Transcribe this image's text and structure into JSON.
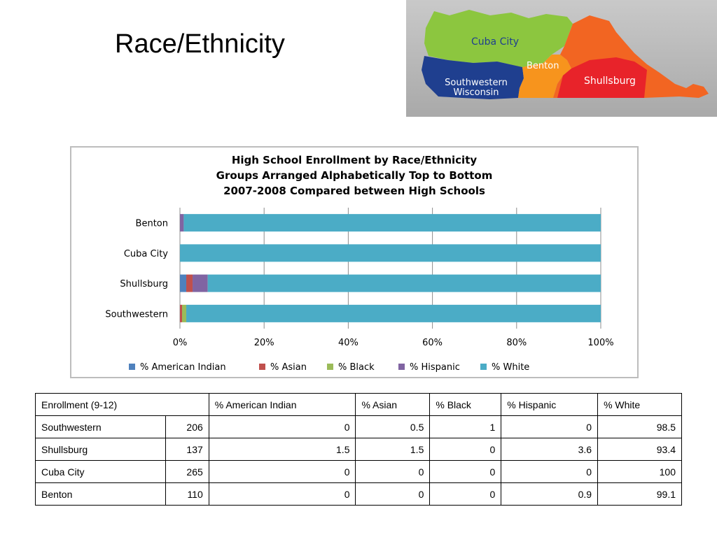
{
  "slide": {
    "title": "Race/Ethnicity"
  },
  "map": {
    "regions": [
      {
        "name": "Cuba City",
        "color": "#8cc63f"
      },
      {
        "name": "Benton",
        "color": "#f7941d"
      },
      {
        "name": "Southwestern Wisconsin",
        "color": "#1f3f8f"
      },
      {
        "name": "Shullsburg",
        "color": "#e8232a"
      }
    ]
  },
  "chart_data": {
    "type": "bar",
    "orientation": "horizontal-stacked-100",
    "title_lines": [
      "High School Enrollment by Race/Ethnicity",
      "Groups Arranged Alphabetically Top to Bottom",
      "2007-2008 Compared between High Schools"
    ],
    "categories": [
      "Benton",
      "Cuba City",
      "Shullsburg",
      "Southwestern"
    ],
    "series": [
      {
        "name": "% American Indian",
        "color": "#4f81bd",
        "values": [
          0,
          0,
          1.5,
          0
        ]
      },
      {
        "name": "% Asian",
        "color": "#c0504d",
        "values": [
          0,
          0,
          1.5,
          0.5
        ]
      },
      {
        "name": "% Black",
        "color": "#9bbb59",
        "values": [
          0,
          0,
          0,
          1
        ]
      },
      {
        "name": "% Hispanic",
        "color": "#8064a2",
        "values": [
          0.9,
          0,
          3.6,
          0
        ]
      },
      {
        "name": "% White",
        "color": "#4bacc6",
        "values": [
          99.1,
          100,
          93.4,
          98.5
        ]
      }
    ],
    "x_ticks": [
      "0%",
      "20%",
      "40%",
      "60%",
      "80%",
      "100%"
    ],
    "xlim": [
      0,
      100
    ],
    "grid": true,
    "legend_position": "bottom"
  },
  "table": {
    "headers": [
      "Enrollment (9-12)",
      "% American Indian",
      "% Asian",
      "% Black",
      "% Hispanic",
      "% White"
    ],
    "rows": [
      [
        "Southwestern",
        "206",
        "0",
        "0.5",
        "1",
        "0",
        "98.5"
      ],
      [
        "Shullsburg",
        "137",
        "1.5",
        "1.5",
        "0",
        "3.6",
        "93.4"
      ],
      [
        "Cuba City",
        "265",
        "0",
        "0",
        "0",
        "0",
        "100"
      ],
      [
        "Benton",
        "110",
        "0",
        "0",
        "0",
        "0.9",
        "99.1"
      ]
    ]
  }
}
